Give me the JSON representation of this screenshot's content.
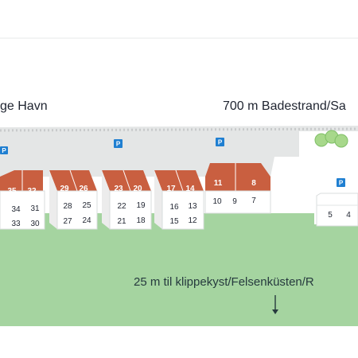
{
  "labels": {
    "harbor": "ge Havn",
    "beach": "700 m Badestrand/Sa",
    "coast": "25 m til klippekyst/Felsenküsten/R"
  },
  "parking_symbol": "P",
  "units": {
    "35": "35",
    "32": "32",
    "34": "34",
    "31": "31",
    "33": "33",
    "30": "30",
    "29": "29",
    "26": "26",
    "28": "28",
    "25": "25",
    "27": "27",
    "24": "24",
    "23": "23",
    "20": "20",
    "22": "22",
    "19": "19",
    "21": "21",
    "18": "18",
    "17": "17",
    "14": "14",
    "16": "16",
    "13": "13",
    "15": "15",
    "12": "12",
    "11": "11",
    "8": "8",
    "10": "10",
    "9": "9",
    "7": "7",
    "5": "5",
    "4": "4"
  },
  "colors": {
    "roof": "#c95f40",
    "wall": "#ffffff",
    "road": "#e4e6e6",
    "grass": "#a5d4a0",
    "parking": "#1f7fd1",
    "tree": "#a7d88b"
  }
}
